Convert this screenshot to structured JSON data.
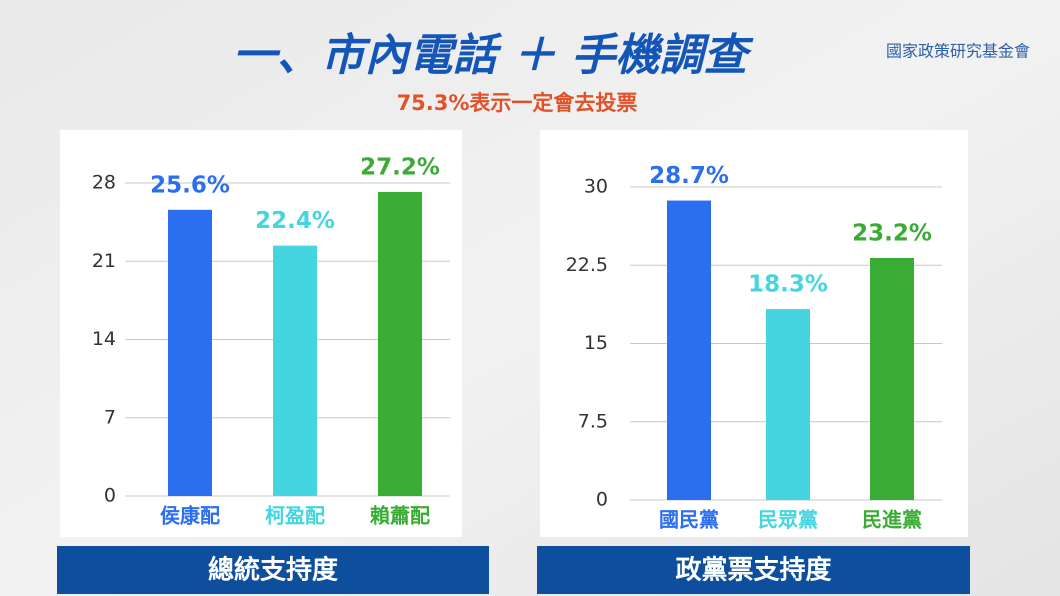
{
  "header": {
    "title": "一、市內電話 ＋ 手機調查",
    "subtitle": "75.3%表示一定會去投票",
    "organization": "國家政策研究基金會"
  },
  "chart_data": [
    {
      "type": "bar",
      "title": "總統支持度",
      "categories": [
        "侯康配",
        "柯盈配",
        "賴蕭配"
      ],
      "values": [
        25.6,
        22.4,
        27.2
      ],
      "value_labels": [
        "25.6%",
        "22.4%",
        "27.2%"
      ],
      "colors": [
        "#2b6ef0",
        "#44d5e0",
        "#3aab35"
      ],
      "ylim": [
        0,
        28
      ],
      "yticks": [
        0,
        7,
        14,
        21,
        28
      ],
      "grid": true
    },
    {
      "type": "bar",
      "title": "政黨票支持度",
      "categories": [
        "國民黨",
        "民眾黨",
        "民進黨"
      ],
      "values": [
        28.7,
        18.3,
        23.2
      ],
      "value_labels": [
        "28.7%",
        "18.3%",
        "23.2%"
      ],
      "colors": [
        "#2b6ef0",
        "#44d5e0",
        "#3aab35"
      ],
      "ylim": [
        0,
        30
      ],
      "yticks": [
        0,
        7.5,
        15,
        22.5,
        30
      ],
      "grid": true
    }
  ]
}
